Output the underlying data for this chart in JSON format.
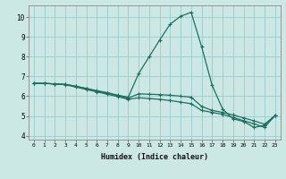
{
  "title": "",
  "xlabel": "Humidex (Indice chaleur)",
  "bg_color": "#cce8e4",
  "grid_color": "#99cccc",
  "line_color": "#1a7060",
  "xlim": [
    -0.5,
    23.5
  ],
  "ylim": [
    3.8,
    10.6
  ],
  "xticks": [
    0,
    1,
    2,
    3,
    4,
    5,
    6,
    7,
    8,
    9,
    10,
    11,
    12,
    13,
    14,
    15,
    16,
    17,
    18,
    19,
    20,
    21,
    22,
    23
  ],
  "yticks": [
    4,
    5,
    6,
    7,
    8,
    9,
    10
  ],
  "line1_x": [
    0,
    1,
    2,
    3,
    4,
    5,
    6,
    7,
    8,
    9,
    10,
    11,
    12,
    13,
    14,
    15,
    16,
    17,
    18,
    19,
    20,
    21,
    22,
    23
  ],
  "line1_y": [
    6.65,
    6.65,
    6.62,
    6.6,
    6.5,
    6.4,
    6.28,
    6.18,
    6.05,
    5.95,
    7.15,
    8.0,
    8.85,
    9.65,
    10.05,
    10.25,
    8.5,
    6.55,
    5.35,
    4.85,
    4.72,
    4.42,
    4.52,
    5.02
  ],
  "line2_x": [
    0,
    1,
    2,
    3,
    4,
    5,
    6,
    7,
    8,
    9,
    10,
    11,
    12,
    13,
    14,
    15,
    16,
    17,
    18,
    19,
    20,
    21,
    22,
    23
  ],
  "line2_y": [
    6.65,
    6.65,
    6.62,
    6.6,
    6.5,
    6.38,
    6.26,
    6.16,
    6.03,
    5.9,
    6.12,
    6.1,
    6.08,
    6.05,
    6.0,
    5.95,
    5.48,
    5.28,
    5.18,
    5.05,
    4.9,
    4.75,
    4.58,
    5.02
  ],
  "line3_x": [
    0,
    1,
    2,
    3,
    4,
    5,
    6,
    7,
    8,
    9,
    10,
    11,
    12,
    13,
    14,
    15,
    16,
    17,
    18,
    19,
    20,
    21,
    22,
    23
  ],
  "line3_y": [
    6.65,
    6.65,
    6.62,
    6.58,
    6.46,
    6.34,
    6.22,
    6.1,
    5.98,
    5.84,
    5.92,
    5.88,
    5.84,
    5.78,
    5.7,
    5.62,
    5.28,
    5.18,
    5.08,
    4.92,
    4.76,
    4.6,
    4.42,
    5.02
  ]
}
